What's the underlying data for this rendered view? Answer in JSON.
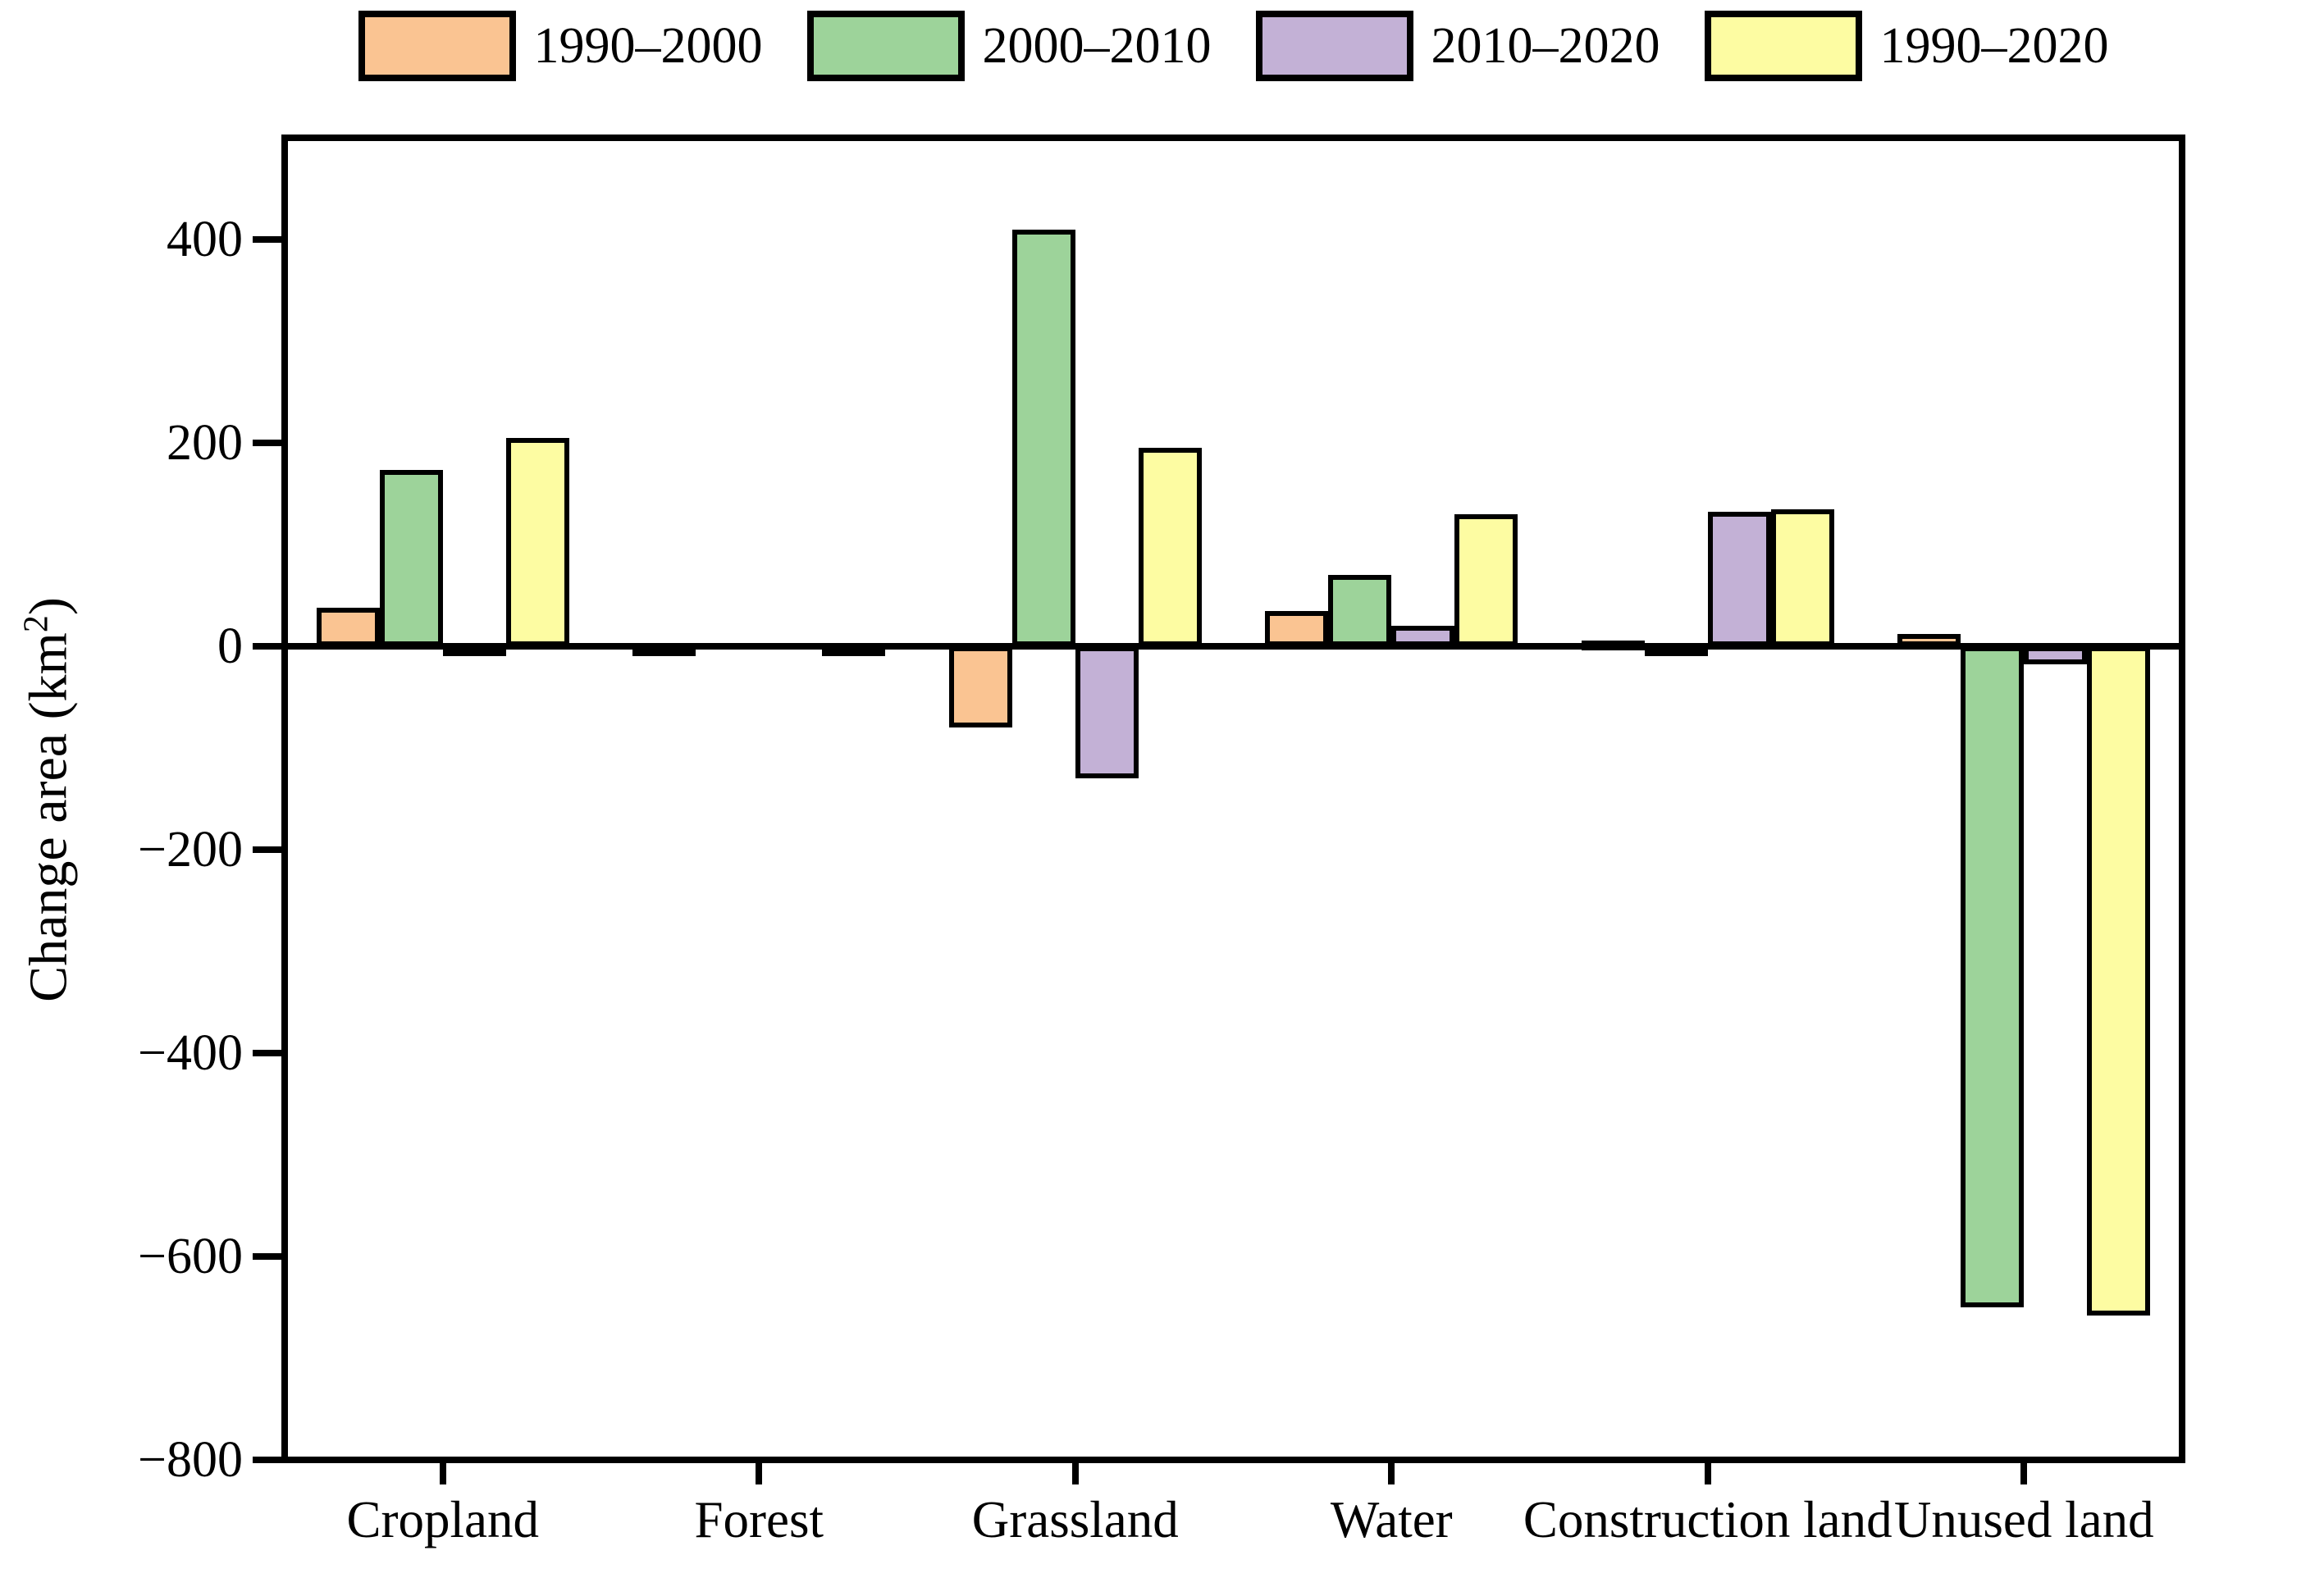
{
  "chart_data": {
    "type": "bar",
    "title": "",
    "categories": [
      "Cropland",
      "Forest",
      "Grassland",
      "Water",
      "Construction land",
      "Unused land"
    ],
    "series": [
      {
        "name": "1990–2000",
        "color": "#FAC492",
        "values": [
          38,
          -10,
          -80,
          35,
          6,
          12
        ]
      },
      {
        "name": "2000–2010",
        "color": "#9DD39A",
        "values": [
          173,
          0,
          410,
          70,
          -5,
          -650
        ]
      },
      {
        "name": "2010–2020",
        "color": "#C3B1D6",
        "values": [
          -8,
          0,
          -130,
          20,
          132,
          -18
        ]
      },
      {
        "name": "1990–2020",
        "color": "#FDFCA2",
        "values": [
          205,
          -10,
          195,
          130,
          135,
          -658
        ]
      }
    ],
    "ylabel": "Change area (km²)",
    "ylabel_base": "Change area (km",
    "ylabel_sup": "2",
    "ylabel_close": ")",
    "ylim": [
      -800,
      500
    ],
    "yticks": [
      400,
      200,
      0,
      -200,
      -400,
      -600,
      -800
    ],
    "legend_position": "top",
    "grid": false,
    "bar_edge_color": "#000000",
    "axis_color": "#000000"
  }
}
